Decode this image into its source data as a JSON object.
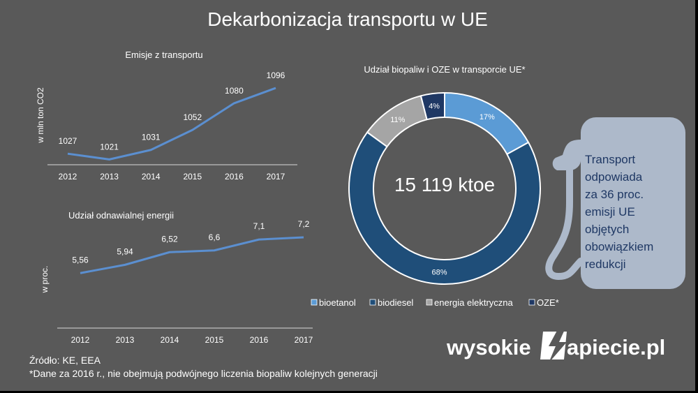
{
  "title": "Dekarbonizacja transportu w UE",
  "chart_data": [
    {
      "type": "line",
      "title": "Emisje z transportu",
      "ylabel": "w mln ton CO2",
      "categories": [
        "2012",
        "2013",
        "2014",
        "2015",
        "2016",
        "2017"
      ],
      "values": [
        1027,
        1021,
        1031,
        1052,
        1080,
        1096
      ],
      "value_labels": [
        "1027",
        "1021",
        "1031",
        "1052",
        "1080",
        "1096"
      ],
      "ylim": [
        1000,
        1110
      ],
      "color": "#5b8fd0",
      "grid": false
    },
    {
      "type": "line",
      "title": "Udział odnawialnej energii",
      "ylabel": "w proc.",
      "categories": [
        "2012",
        "2013",
        "2014",
        "2015",
        "2016",
        "2017"
      ],
      "values": [
        5.56,
        5.94,
        6.52,
        6.6,
        7.1,
        7.2
      ],
      "value_labels": [
        "5,56",
        "5,94",
        "6,52",
        "6,6",
        "7,1",
        "7,2"
      ],
      "ylim": [
        0,
        8
      ],
      "color": "#5b8fd0",
      "grid": false
    },
    {
      "type": "pie",
      "title": "Udział biopaliw i OZE w transporcie UE*",
      "center_label": "15 119 ktoe",
      "categories": [
        "bioetanol",
        "biodiesel",
        "energia elektryczna",
        "OZE*"
      ],
      "values": [
        17,
        68,
        11,
        4
      ],
      "value_labels": [
        "17%",
        "68%",
        "11%",
        "4%"
      ],
      "colors": [
        "#5b9bd5",
        "#1f4e79",
        "#a5a5a5",
        "#1f3864"
      ],
      "legend_position": "bottom"
    }
  ],
  "pump": {
    "lines": [
      "Transport",
      "odpowiada",
      "za 36  proc.",
      "emisji UE",
      "objętych",
      "obowiązkiem",
      "redukcji"
    ]
  },
  "footer": {
    "source": "Źródło: KE, EEA",
    "note": "*Dane za 2016 r., nie obejmują podwójnego liczenia biopaliw kolejnych generacji"
  },
  "brand": {
    "left": "wysokie",
    "right": "apiecie.pl"
  }
}
